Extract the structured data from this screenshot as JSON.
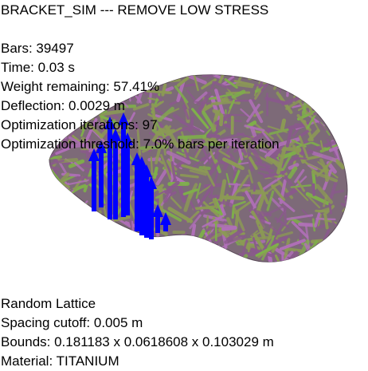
{
  "app": {
    "title": "BRACKET_SIM --- REMOVE LOW STRESS"
  },
  "stats": {
    "bars": "Bars: 39497",
    "time": "Time: 0.03 s",
    "weight_remaining": "Weight remaining: 57.41%",
    "deflection": "Deflection: 0.0029 m",
    "optimization_iterations": "Optimization iterations: 97",
    "optimization_threshold": "Optimization threshold: 7.0% bars per iteration"
  },
  "lattice": {
    "type": "Random Lattice",
    "spacing_cutoff": "Spacing cutoff: 0.005 m",
    "bounds": "Bounds: 0.181183 x 0.0618608 x 0.103029 m",
    "material": "Material: TITANIUM"
  },
  "colors": {
    "background": "#ffffff",
    "text": "#000000",
    "bar_purple": "#8a5a8c",
    "bar_magenta": "#b070b8",
    "bar_olive": "#8c9a55",
    "bar_green": "#7fb04a",
    "load_arrow": "#0000ff"
  },
  "scene": {
    "object": "bracket-lattice-mesh",
    "load_indicator_icon": "force-arrow-icon"
  }
}
